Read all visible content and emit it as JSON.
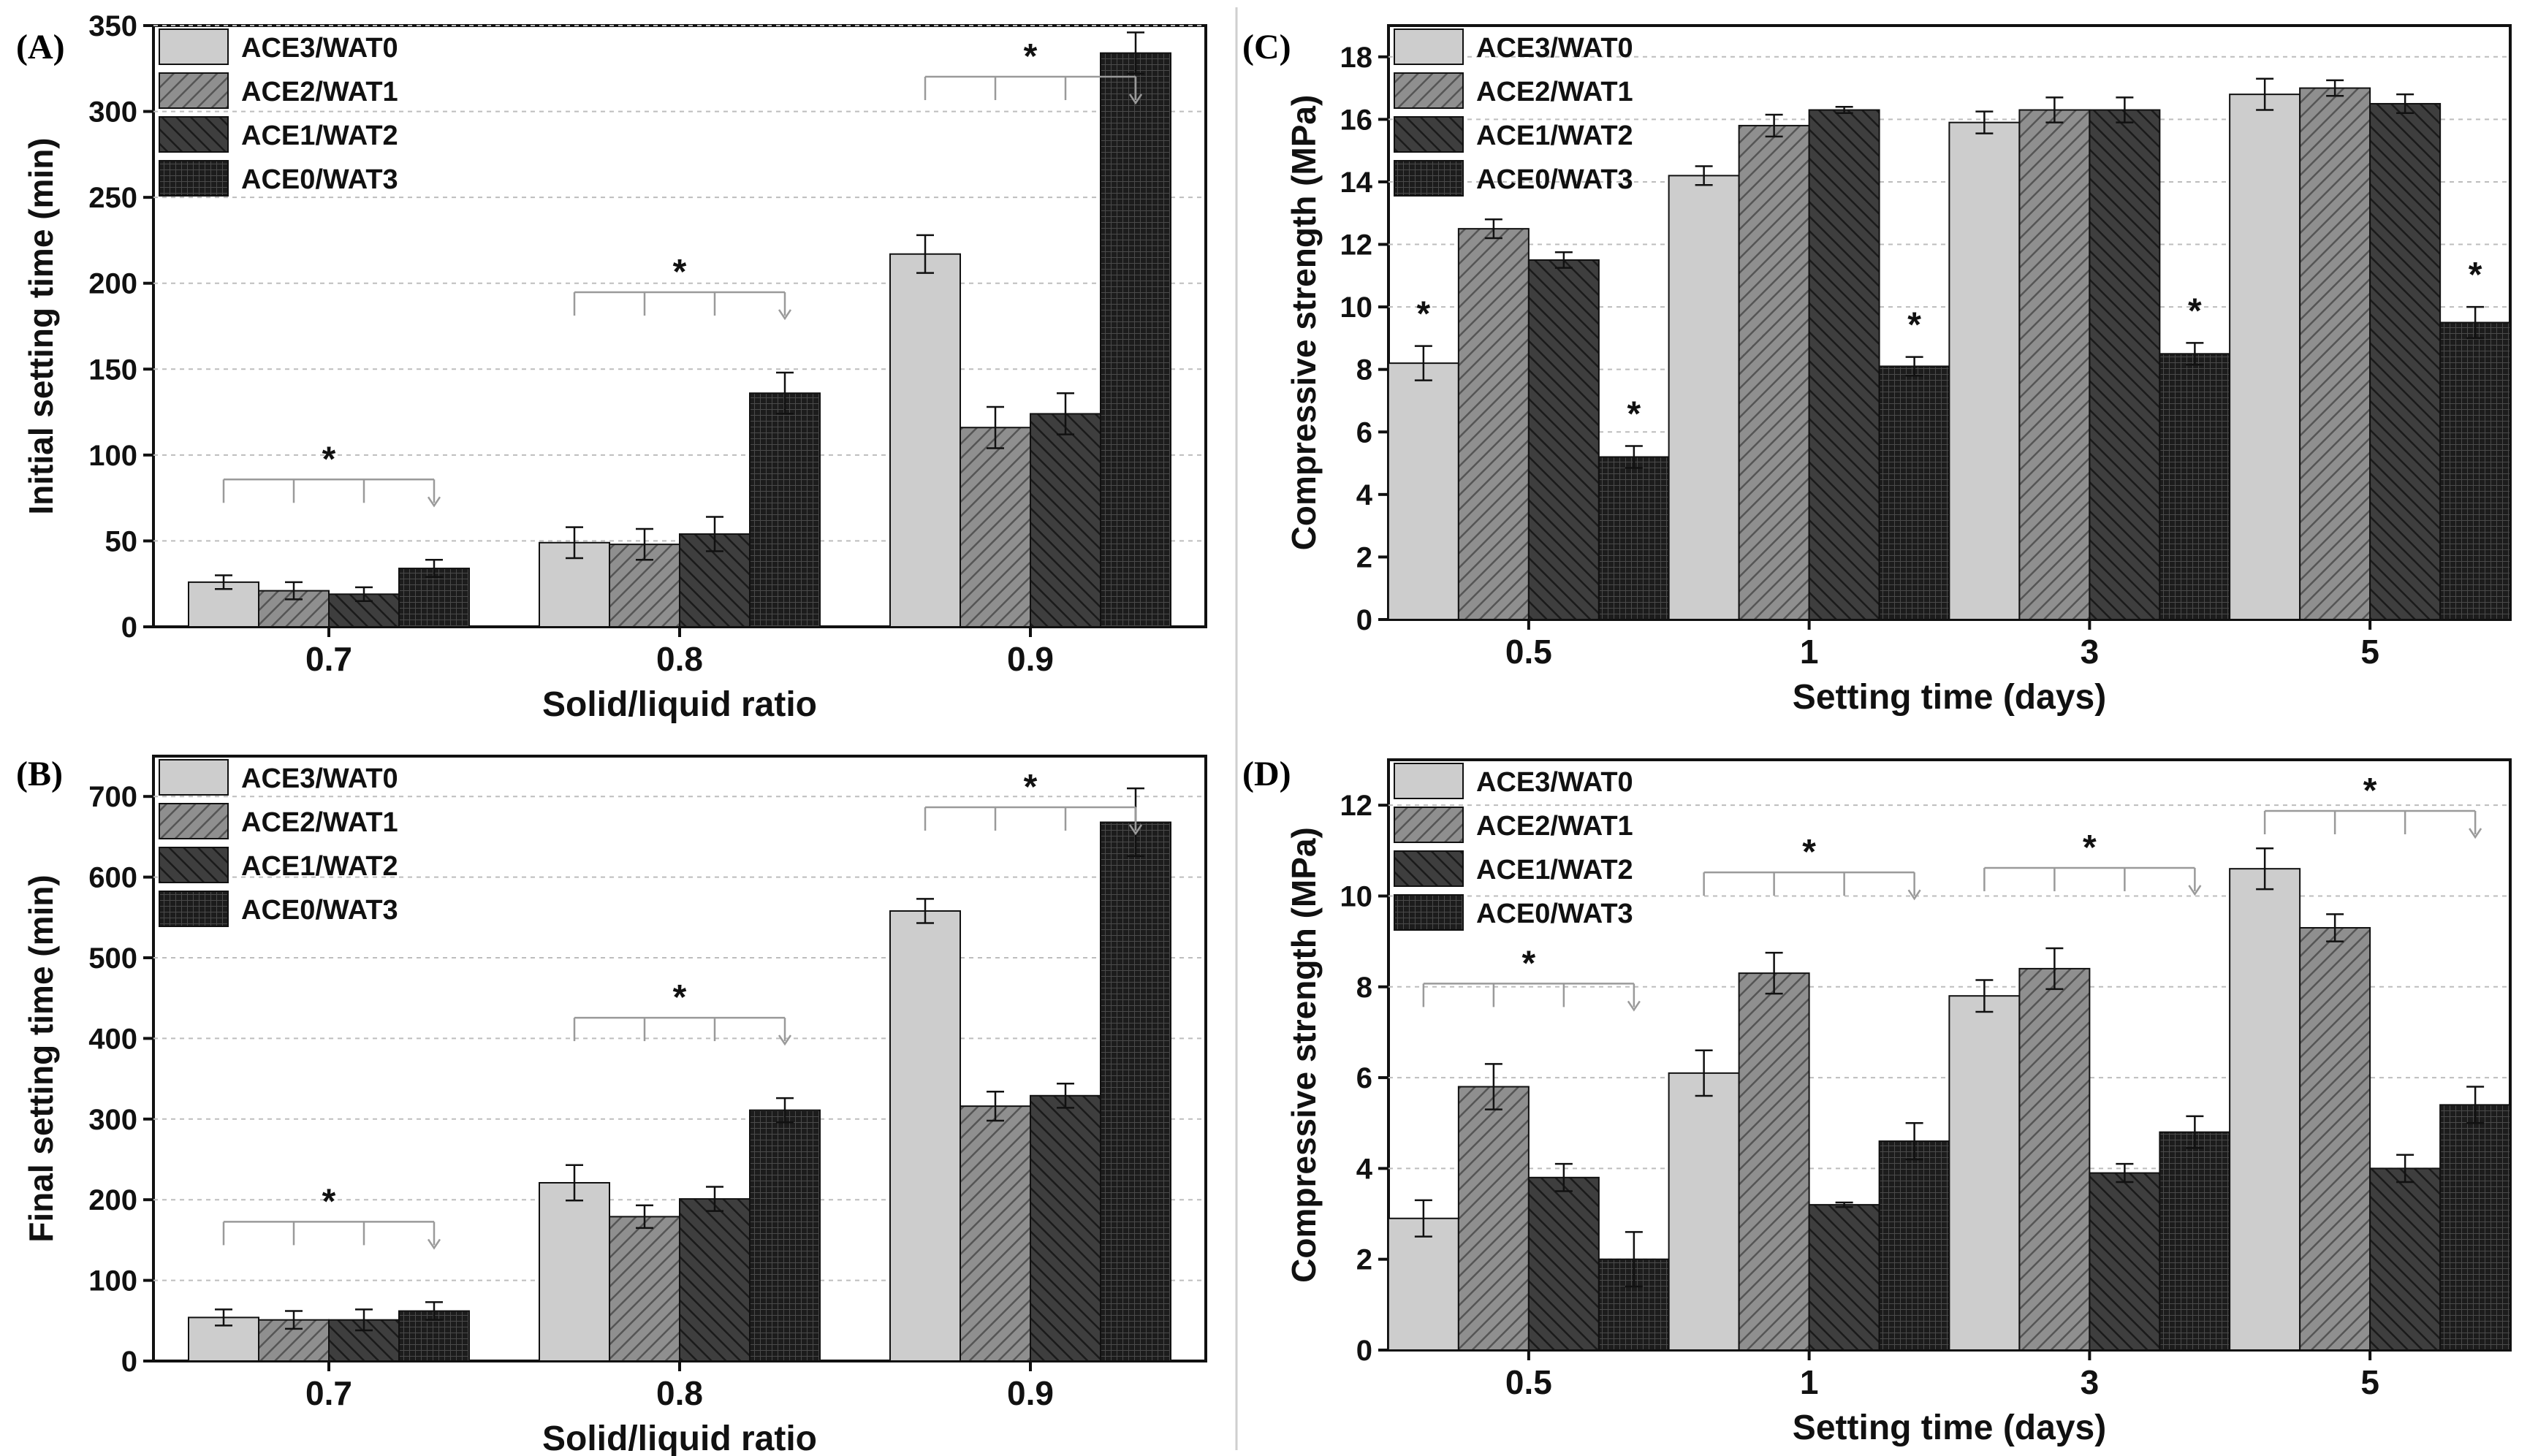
{
  "figure": {
    "divider_color": "#cfcfcf"
  },
  "series_styles": [
    {
      "name": "ACE3/WAT0",
      "fill": "#cdcdcd",
      "pattern": "none"
    },
    {
      "name": "ACE2/WAT1",
      "fill": "#8f8f8f",
      "pattern": "diag-right"
    },
    {
      "name": "ACE1/WAT2",
      "fill": "#3e3e3e",
      "pattern": "diag-left"
    },
    {
      "name": "ACE0/WAT3",
      "fill": "#1c1c1c",
      "pattern": "grid"
    }
  ],
  "chart_data": [
    {
      "panel": "(A)",
      "type": "bar",
      "xlabel": "Solid/liquid ratio",
      "ylabel": "Initial setting time (min)",
      "categories": [
        "0.7",
        "0.8",
        "0.9"
      ],
      "ylim": [
        0,
        350
      ],
      "yticks": [
        0,
        50,
        100,
        150,
        200,
        250,
        300,
        350
      ],
      "legend_position": "top-left",
      "series": [
        {
          "name": "ACE3/WAT0",
          "values": [
            26,
            49,
            217
          ],
          "errors": [
            4,
            9,
            11
          ]
        },
        {
          "name": "ACE2/WAT1",
          "values": [
            21,
            48,
            116
          ],
          "errors": [
            5,
            9,
            12
          ]
        },
        {
          "name": "ACE1/WAT2",
          "values": [
            19,
            54,
            124
          ],
          "errors": [
            4,
            10,
            12
          ]
        },
        {
          "name": "ACE0/WAT3",
          "values": [
            34,
            136,
            334
          ],
          "errors": [
            5,
            12,
            12
          ]
        }
      ],
      "significance": [
        {
          "category": "0.7",
          "label": "*"
        },
        {
          "category": "0.8",
          "label": "*"
        },
        {
          "category": "0.9",
          "label": "*"
        }
      ]
    },
    {
      "panel": "(B)",
      "type": "bar",
      "xlabel": "Solid/liquid ratio",
      "ylabel": "Final setting time (min)",
      "categories": [
        "0.7",
        "0.8",
        "0.9"
      ],
      "ylim": [
        0,
        750
      ],
      "yticks": [
        0,
        100,
        200,
        300,
        400,
        500,
        600,
        700
      ],
      "legend_position": "top-left",
      "series": [
        {
          "name": "ACE3/WAT0",
          "values": [
            54,
            221,
            558
          ],
          "errors": [
            10,
            22,
            15
          ]
        },
        {
          "name": "ACE2/WAT1",
          "values": [
            51,
            179,
            316
          ],
          "errors": [
            11,
            14,
            18
          ]
        },
        {
          "name": "ACE1/WAT2",
          "values": [
            51,
            201,
            329
          ],
          "errors": [
            13,
            15,
            15
          ]
        },
        {
          "name": "ACE0/WAT3",
          "values": [
            62,
            311,
            668
          ],
          "errors": [
            11,
            15,
            42
          ]
        }
      ],
      "significance": [
        {
          "category": "0.7",
          "label": "*"
        },
        {
          "category": "0.8",
          "label": "*"
        },
        {
          "category": "0.9",
          "label": "*"
        }
      ]
    },
    {
      "panel": "(C)",
      "type": "bar",
      "xlabel": "Setting time (days)",
      "ylabel": "Compressive strength (MPa)",
      "categories": [
        "0.5",
        "1",
        "3",
        "5"
      ],
      "ylim": [
        0,
        19
      ],
      "yticks": [
        0,
        2,
        4,
        6,
        8,
        10,
        12,
        14,
        16,
        18
      ],
      "legend_position": "top-left",
      "series": [
        {
          "name": "ACE3/WAT0",
          "values": [
            8.2,
            14.2,
            15.9,
            16.8
          ],
          "errors": [
            0.55,
            0.3,
            0.35,
            0.5
          ]
        },
        {
          "name": "ACE2/WAT1",
          "values": [
            12.5,
            15.8,
            16.3,
            17.0
          ],
          "errors": [
            0.3,
            0.35,
            0.4,
            0.25
          ]
        },
        {
          "name": "ACE1/WAT2",
          "values": [
            11.5,
            16.3,
            16.3,
            16.5
          ],
          "errors": [
            0.25,
            0.1,
            0.4,
            0.3
          ]
        },
        {
          "name": "ACE0/WAT3",
          "values": [
            5.2,
            8.1,
            8.5,
            9.5
          ],
          "errors": [
            0.35,
            0.3,
            0.35,
            0.5
          ]
        }
      ],
      "significance": [
        {
          "category": "0.5",
          "bar": "ACE3/WAT0",
          "label": "*"
        },
        {
          "category": "0.5",
          "bar": "ACE0/WAT3",
          "label": "*"
        },
        {
          "category": "1",
          "bar": "ACE0/WAT3",
          "label": "*"
        },
        {
          "category": "3",
          "bar": "ACE0/WAT3",
          "label": "*"
        },
        {
          "category": "5",
          "bar": "ACE0/WAT3",
          "label": "*"
        }
      ]
    },
    {
      "panel": "(D)",
      "type": "bar",
      "xlabel": "Setting time (days)",
      "ylabel": "Compressive strength (MPa)",
      "categories": [
        "0.5",
        "1",
        "3",
        "5"
      ],
      "ylim": [
        0,
        13
      ],
      "yticks": [
        0,
        2,
        4,
        6,
        8,
        10,
        12
      ],
      "legend_position": "top-left",
      "series": [
        {
          "name": "ACE3/WAT0",
          "values": [
            2.9,
            6.1,
            7.8,
            10.6
          ],
          "errors": [
            0.4,
            0.5,
            0.35,
            0.45
          ]
        },
        {
          "name": "ACE2/WAT1",
          "values": [
            5.8,
            8.3,
            8.4,
            9.3
          ],
          "errors": [
            0.5,
            0.45,
            0.45,
            0.3
          ]
        },
        {
          "name": "ACE1/WAT2",
          "values": [
            3.8,
            3.2,
            3.9,
            4.0
          ],
          "errors": [
            0.3,
            0.05,
            0.2,
            0.3
          ]
        },
        {
          "name": "ACE0/WAT3",
          "values": [
            2.0,
            4.6,
            4.8,
            5.4
          ],
          "errors": [
            0.6,
            0.4,
            0.35,
            0.4
          ]
        }
      ],
      "significance": [
        {
          "category": "0.5",
          "label": "*"
        },
        {
          "category": "1",
          "label": "*"
        },
        {
          "category": "3",
          "label": "*"
        },
        {
          "category": "5",
          "label": "*"
        }
      ]
    }
  ]
}
